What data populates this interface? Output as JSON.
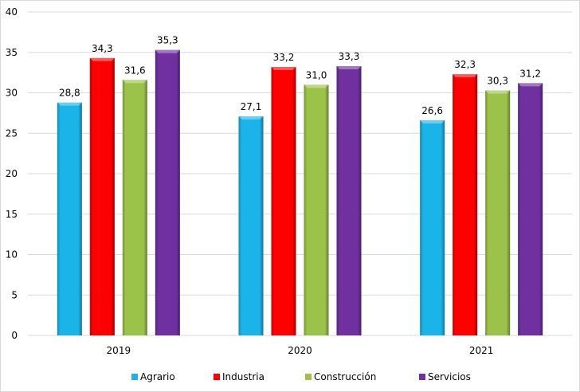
{
  "chart_data": {
    "type": "bar",
    "title": "",
    "xlabel": "",
    "ylabel": "",
    "categories": [
      "2019",
      "2020",
      "2021"
    ],
    "ylim": [
      0,
      40
    ],
    "yticks": [
      "0",
      "5",
      "10",
      "15",
      "20",
      "25",
      "30",
      "35",
      "40"
    ],
    "grid": true,
    "legend_position": "bottom",
    "series": [
      {
        "name": "Agrario",
        "color": "#1ab4e8",
        "values": [
          28.8,
          27.1,
          26.6
        ],
        "labels": [
          "28,8",
          "27,1",
          "26,6"
        ]
      },
      {
        "name": "Industria",
        "color": "#ff0000",
        "values": [
          34.3,
          33.2,
          32.3
        ],
        "labels": [
          "34,3",
          "33,2",
          "32,3"
        ]
      },
      {
        "name": "Construcción",
        "color": "#9bc34a",
        "values": [
          31.6,
          31.0,
          30.3
        ],
        "labels": [
          "31,6",
          "31,0",
          "30,3"
        ]
      },
      {
        "name": "Servicios",
        "color": "#7030a0",
        "values": [
          35.3,
          33.3,
          31.2
        ],
        "labels": [
          "35,3",
          "33,3",
          "31,2"
        ]
      }
    ]
  }
}
